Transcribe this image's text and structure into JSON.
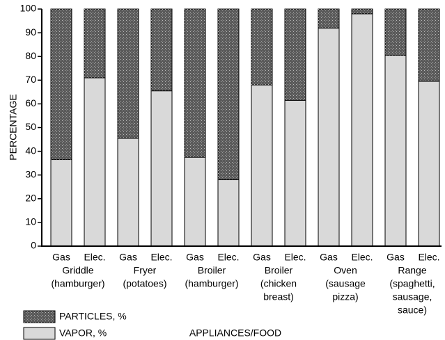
{
  "chart_data": {
    "type": "stacked_bar",
    "y_label": "PERCENTAGE",
    "x_label": "APPLIANCES/FOOD",
    "categories": [
      "Gas",
      "Elec.",
      "Gas",
      "Elec.",
      "Gas",
      "Elec.",
      "Gas",
      "Elec.",
      "Gas",
      "Elec.",
      "Gas",
      "Elec."
    ],
    "groups": [
      [
        "Griddle",
        "(hamburger)"
      ],
      [
        "Fryer",
        "(potatoes)"
      ],
      [
        "Broiler",
        "(hamburger)"
      ],
      [
        "Broiler",
        "(chicken",
        "breast)"
      ],
      [
        "Oven",
        "(sausage",
        "pizza)"
      ],
      [
        "Range",
        "(spaghetti,",
        "sausage,",
        "sauce)"
      ]
    ],
    "series": [
      {
        "name": "PARTICLES, %",
        "color": "#5a5a5a",
        "values": [
          63.5,
          29,
          54.5,
          34.5,
          62.5,
          72,
          32,
          38.5,
          8,
          2,
          19.5,
          30.5
        ]
      },
      {
        "name": "VAPOR, %",
        "color": "#d9d9d9",
        "values": [
          36.5,
          71,
          45.5,
          65.5,
          37.5,
          28,
          68,
          61.5,
          92,
          98,
          80.5,
          69.5
        ]
      }
    ],
    "ylim": [
      0,
      100
    ],
    "yticks": [
      0,
      10,
      20,
      30,
      40,
      50,
      60,
      70,
      80,
      90,
      100
    ],
    "grid": false,
    "legend": "bottom-left"
  }
}
